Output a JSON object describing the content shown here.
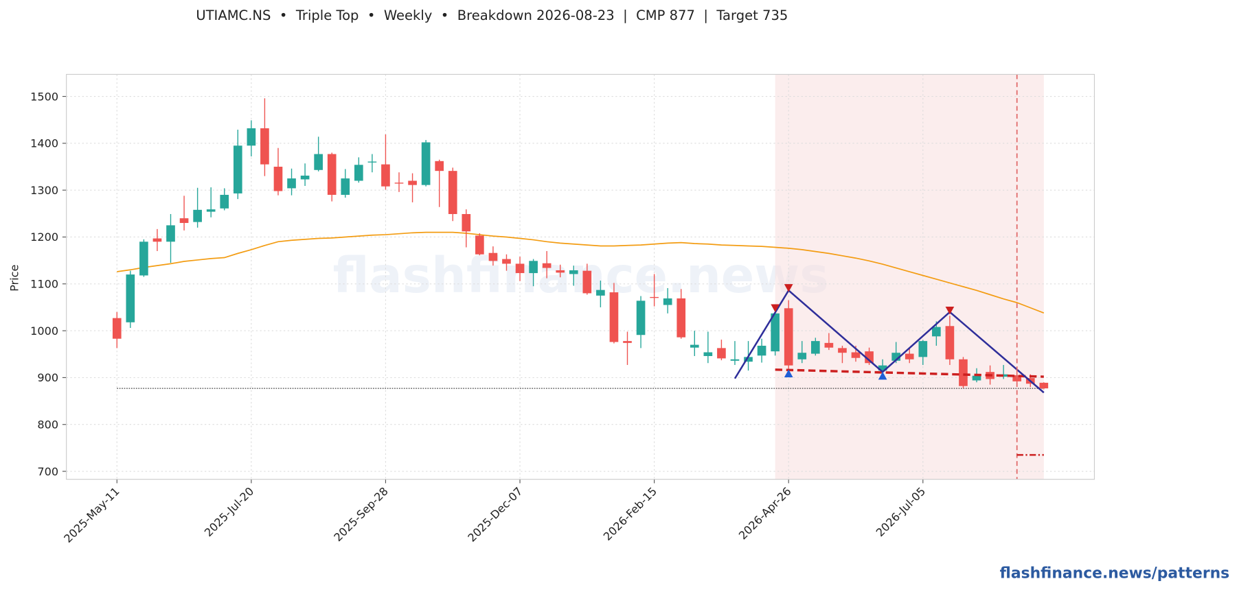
{
  "chart_data": {
    "type": "candlestick",
    "title": "UTIAMC.NS  •  Triple Top  •  Weekly  •  Breakdown 2026-08-23  |  CMP 877  |  Target 735",
    "ylabel": "Price",
    "watermark": "flashfinance.news",
    "footer": "flashfinance.news/patterns",
    "x": [
      "2025-May-11",
      "2025-May-18",
      "2025-May-25",
      "2025-Jun-01",
      "2025-Jun-08",
      "2025-Jun-15",
      "2025-Jun-22",
      "2025-Jun-29",
      "2025-Jul-06",
      "2025-Jul-13",
      "2025-Jul-20",
      "2025-Jul-27",
      "2025-Aug-03",
      "2025-Aug-10",
      "2025-Aug-17",
      "2025-Aug-24",
      "2025-Aug-31",
      "2025-Sep-07",
      "2025-Sep-14",
      "2025-Sep-21",
      "2025-Sep-28",
      "2025-Oct-05",
      "2025-Oct-12",
      "2025-Oct-19",
      "2025-Oct-26",
      "2025-Nov-02",
      "2025-Nov-09",
      "2025-Nov-16",
      "2025-Nov-23",
      "2025-Nov-30",
      "2025-Dec-07",
      "2025-Dec-14",
      "2025-Dec-21",
      "2025-Dec-28",
      "2026-Jan-04",
      "2026-Jan-11",
      "2026-Jan-18",
      "2026-Jan-25",
      "2026-Feb-01",
      "2026-Feb-08",
      "2026-Feb-15",
      "2026-Feb-22",
      "2026-Mar-01",
      "2026-Mar-08",
      "2026-Mar-15",
      "2026-Mar-22",
      "2026-Mar-29",
      "2026-Apr-05",
      "2026-Apr-12",
      "2026-Apr-19",
      "2026-Apr-26",
      "2026-May-03",
      "2026-May-10",
      "2026-May-17",
      "2026-May-24",
      "2026-May-31",
      "2026-Jun-07",
      "2026-Jun-14",
      "2026-Jun-21",
      "2026-Jun-28",
      "2026-Jul-05",
      "2026-Jul-12",
      "2026-Jul-19",
      "2026-Jul-26",
      "2026-Aug-02",
      "2026-Aug-09",
      "2026-Aug-16",
      "2026-Aug-23",
      "2026-Aug-30",
      "2026-Sep-06"
    ],
    "open": [
      1027,
      1018,
      1118,
      1197,
      1190,
      1240,
      1232,
      1254,
      1261,
      1293,
      1395,
      1432,
      1350,
      1304,
      1323,
      1343,
      1377,
      1290,
      1320,
      1359,
      1355,
      1316,
      1320,
      1311,
      1362,
      1341,
      1249,
      1203,
      1166,
      1153,
      1143,
      1123,
      1144,
      1129,
      1121,
      1128,
      1075,
      1082,
      978,
      991,
      1072,
      1055,
      1069,
      964,
      946,
      963,
      936,
      934,
      947,
      956,
      1048,
      939,
      951,
      974,
      963,
      954,
      956,
      915,
      936,
      951,
      944,
      988,
      1010,
      939,
      894,
      912,
      902,
      905,
      899,
      889
    ],
    "high": [
      1040,
      1128,
      1195,
      1217,
      1249,
      1288,
      1305,
      1306,
      1304,
      1429,
      1449,
      1496,
      1390,
      1346,
      1357,
      1414,
      1380,
      1345,
      1370,
      1377,
      1419,
      1338,
      1336,
      1407,
      1365,
      1348,
      1259,
      1208,
      1180,
      1163,
      1158,
      1153,
      1170,
      1141,
      1139,
      1143,
      1107,
      1102,
      998,
      1074,
      1121,
      1091,
      1089,
      1000,
      998,
      981,
      978,
      978,
      983,
      1047,
      1065,
      978,
      985,
      995,
      968,
      968,
      964,
      939,
      976,
      964,
      980,
      1020,
      1032,
      944,
      920,
      926,
      927,
      920,
      907,
      890
    ],
    "low": [
      963,
      1006,
      1115,
      1170,
      1145,
      1214,
      1220,
      1242,
      1257,
      1281,
      1372,
      1330,
      1289,
      1289,
      1309,
      1340,
      1276,
      1284,
      1316,
      1338,
      1301,
      1296,
      1274,
      1308,
      1264,
      1234,
      1178,
      1161,
      1139,
      1128,
      1106,
      1095,
      1112,
      1114,
      1096,
      1077,
      1050,
      973,
      927,
      963,
      1052,
      1037,
      983,
      946,
      931,
      937,
      927,
      915,
      932,
      947,
      917,
      931,
      947,
      959,
      931,
      934,
      927,
      912,
      931,
      931,
      927,
      968,
      927,
      878,
      890,
      885,
      897,
      890,
      880,
      875
    ],
    "close": [
      983,
      1120,
      1190,
      1190,
      1225,
      1230,
      1258,
      1259,
      1290,
      1395,
      1432,
      1355,
      1298,
      1325,
      1331,
      1377,
      1290,
      1325,
      1354,
      1361,
      1308,
      1314,
      1311,
      1402,
      1341,
      1249,
      1212,
      1163,
      1149,
      1143,
      1123,
      1149,
      1134,
      1124,
      1129,
      1080,
      1087,
      976,
      974,
      1064,
      1070,
      1069,
      986,
      970,
      954,
      941,
      939,
      944,
      968,
      1037,
      926,
      953,
      978,
      964,
      953,
      942,
      931,
      926,
      953,
      939,
      978,
      1008,
      939,
      882,
      904,
      897,
      907,
      892,
      887,
      877
    ],
    "up_color": "#26a69a",
    "down_color": "#ef5350",
    "ylim": [
      683,
      1547
    ],
    "yticks": [
      700,
      800,
      900,
      1000,
      1100,
      1200,
      1300,
      1400,
      1500
    ],
    "grid": true,
    "sma": {
      "color": "#f39c12",
      "values": [
        1126,
        1130,
        1135,
        1139,
        1143,
        1148,
        1151,
        1154,
        1156,
        1165,
        1173,
        1182,
        1190,
        1193,
        1195,
        1197,
        1198,
        1200,
        1202,
        1204,
        1205,
        1207,
        1209,
        1210,
        1210,
        1210,
        1208,
        1205,
        1202,
        1200,
        1197,
        1194,
        1190,
        1187,
        1185,
        1183,
        1181,
        1181,
        1182,
        1183,
        1185,
        1187,
        1188,
        1186,
        1185,
        1183,
        1182,
        1181,
        1180,
        1178,
        1176,
        1173,
        1169,
        1165,
        1160,
        1155,
        1149,
        1142,
        1134,
        1126,
        1118,
        1110,
        1102,
        1094,
        1086,
        1077,
        1068,
        1060,
        1049,
        1038
      ]
    },
    "pattern": {
      "color": "#2e2e9a",
      "x": [
        "2026-Mar-29",
        "2026-Apr-26",
        "2026-Jun-14",
        "2026-Jul-19",
        "2026-Sep-06"
      ],
      "values": [
        898,
        1086,
        912,
        1040,
        868
      ]
    },
    "tops": {
      "color": "#cc1f1f",
      "x": [
        "2026-Apr-19",
        "2026-Apr-26",
        "2026-Jul-19"
      ],
      "values": [
        1048,
        1091,
        1043
      ]
    },
    "bottoms": {
      "color": "#1f5fd6",
      "x": [
        "2026-Apr-26",
        "2026-Jun-14"
      ],
      "values": [
        909,
        904
      ]
    },
    "neckline": {
      "color": "#cc1f1f",
      "x": [
        "2026-Apr-19",
        "2026-Sep-06"
      ],
      "values": [
        917,
        902
      ]
    },
    "zone": [
      "2026-Apr-19",
      "2026-Sep-06"
    ],
    "breakdown": "2026-Aug-23",
    "cmp": 877,
    "target": 735
  }
}
